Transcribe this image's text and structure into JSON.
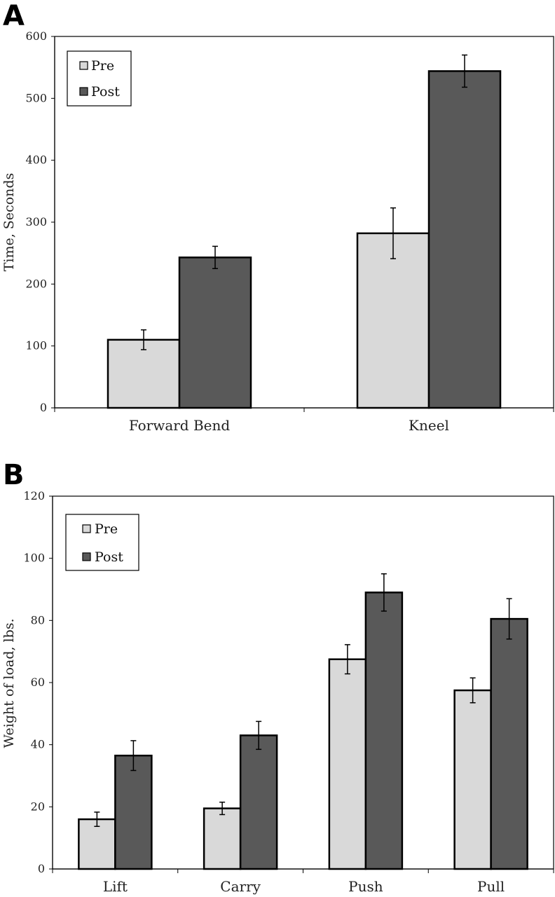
{
  "chart_data": [
    {
      "panel": "A",
      "type": "bar",
      "ylabel": "Time, Seconds",
      "xlabel": "",
      "ylim": [
        0,
        600
      ],
      "yticks": [
        "0",
        "100",
        "200",
        "300",
        "400",
        "500",
        "600"
      ],
      "categories": [
        "Forward Bend",
        "Kneel"
      ],
      "series": [
        {
          "name": "Pre",
          "color": "#d9d9d9",
          "values": [
            110,
            282
          ],
          "error": [
            16,
            41
          ]
        },
        {
          "name": "Post",
          "color": "#595959",
          "values": [
            243,
            544
          ],
          "error": [
            18,
            26
          ]
        }
      ],
      "legend": "top-left",
      "grid": false
    },
    {
      "panel": "B",
      "type": "bar",
      "ylabel": "Weight of load, lbs.",
      "xlabel": "",
      "ylim": [
        0,
        120
      ],
      "yticks": [
        "0",
        "20",
        "40",
        "60",
        "80",
        "100",
        "120"
      ],
      "categories": [
        "Lift",
        "Carry",
        "Push",
        "Pull"
      ],
      "series": [
        {
          "name": "Pre",
          "color": "#d9d9d9",
          "values": [
            16,
            19.5,
            67.5,
            57.5
          ],
          "error": [
            2.3,
            2,
            4.7,
            4
          ]
        },
        {
          "name": "Post",
          "color": "#595959",
          "values": [
            36.5,
            43,
            89,
            80.5
          ],
          "error": [
            4.8,
            4.5,
            6,
            6.5
          ]
        }
      ],
      "legend": "top-left",
      "grid": false
    }
  ]
}
